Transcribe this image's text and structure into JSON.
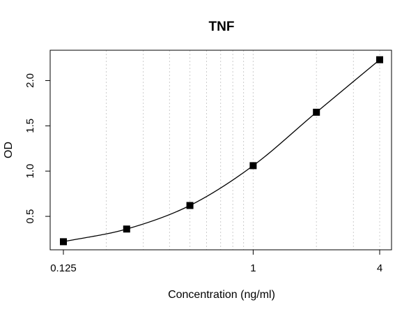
{
  "chart_data": {
    "type": "scatter",
    "title": "TNF",
    "xlabel": "Concentration (ng/ml)",
    "ylabel": "OD",
    "x_scale": "log",
    "xlim": [
      0.125,
      4
    ],
    "ylim": [
      0.2,
      2.25
    ],
    "x_ticks": [
      {
        "value": 0.125,
        "label": "0.125"
      },
      {
        "value": 1,
        "label": "1"
      },
      {
        "value": 4,
        "label": "4"
      }
    ],
    "y_ticks": [
      {
        "value": 0.5,
        "label": "0.5"
      },
      {
        "value": 1.0,
        "label": "1.0"
      },
      {
        "value": 1.5,
        "label": "1.5"
      },
      {
        "value": 2.0,
        "label": "2.0"
      }
    ],
    "grid": "vertical dotted at log minor ticks",
    "points_x": [
      0.125,
      0.25,
      0.5,
      1,
      2,
      4
    ],
    "points_y": [
      0.22,
      0.36,
      0.62,
      1.06,
      1.65,
      2.23
    ],
    "fit_line": true,
    "colors": {
      "marker": "#000000",
      "line": "#000000",
      "grid": "#cccccc"
    }
  }
}
